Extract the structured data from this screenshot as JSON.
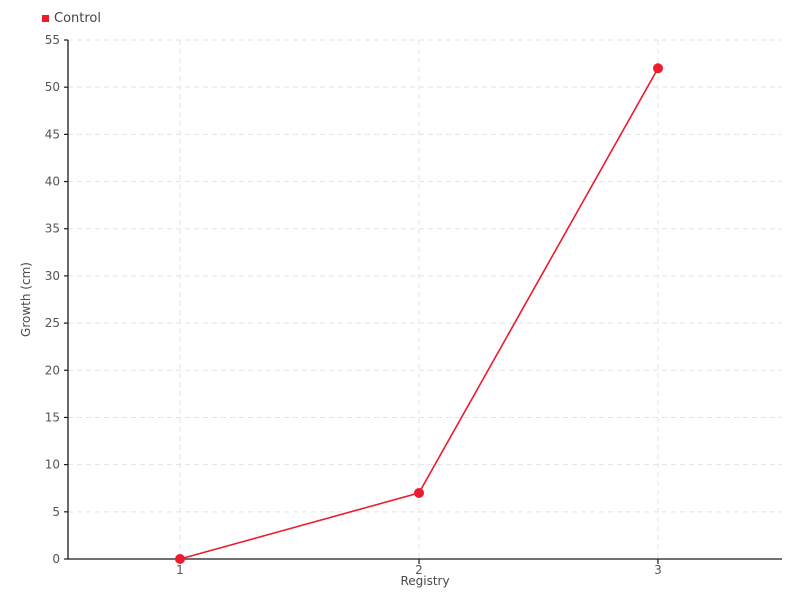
{
  "chart_data": {
    "type": "line",
    "title": "",
    "xlabel": "Registry",
    "ylabel": "Growth (cm)",
    "x": [
      1,
      2,
      3
    ],
    "xticks": [
      1,
      2,
      3
    ],
    "yticks": [
      0,
      5,
      10,
      15,
      20,
      25,
      30,
      35,
      40,
      45,
      50,
      55
    ],
    "ylim": [
      0,
      55
    ],
    "xlim": [
      1,
      3
    ],
    "grid": "dashed",
    "legend_position": "top-left",
    "series": [
      {
        "name": "Control",
        "color": "#ed1b2e",
        "marker": "circle",
        "values": [
          0,
          7,
          52
        ]
      }
    ]
  },
  "colors": {
    "background": "#ffffff",
    "axis": "#1a1a1a",
    "grid": "#e3e3e3",
    "tick_text": "#555555",
    "axis_label_text": "#4a4a4a"
  }
}
